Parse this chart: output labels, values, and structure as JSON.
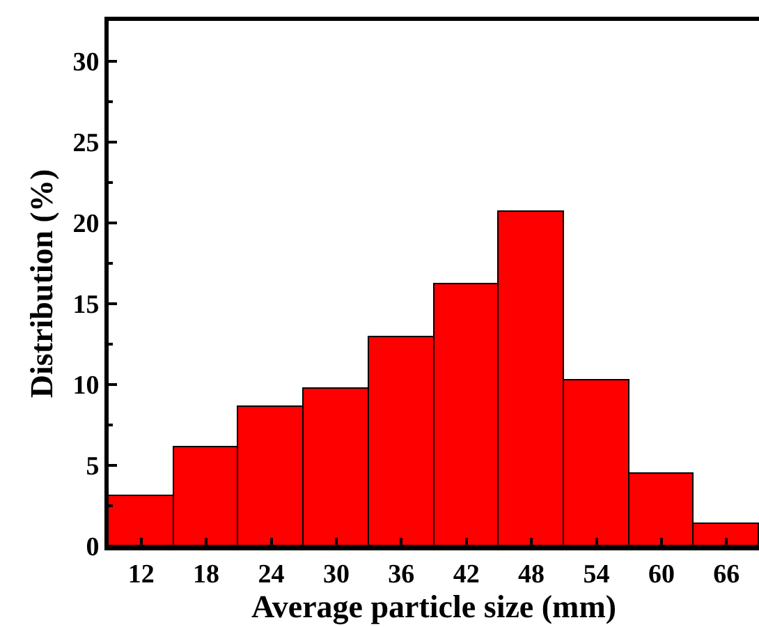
{
  "chart_data": {
    "type": "histogram",
    "xlabel": "Average particle size (mm)",
    "ylabel": "Distribution (%)",
    "bins": [
      9,
      15,
      21,
      27,
      33,
      39,
      45,
      51,
      57,
      63,
      69
    ],
    "values": [
      3.1,
      6.1,
      8.6,
      9.7,
      12.9,
      16.2,
      20.7,
      10.3,
      4.5,
      1.4
    ],
    "color": "#ff0000",
    "xlim": [
      9,
      69
    ],
    "xticks": [
      12,
      18,
      24,
      30,
      36,
      42,
      48,
      54,
      60,
      66
    ],
    "ylim": [
      0,
      32.5
    ],
    "yticks": [
      0,
      5,
      10,
      15,
      20,
      25,
      30
    ]
  }
}
